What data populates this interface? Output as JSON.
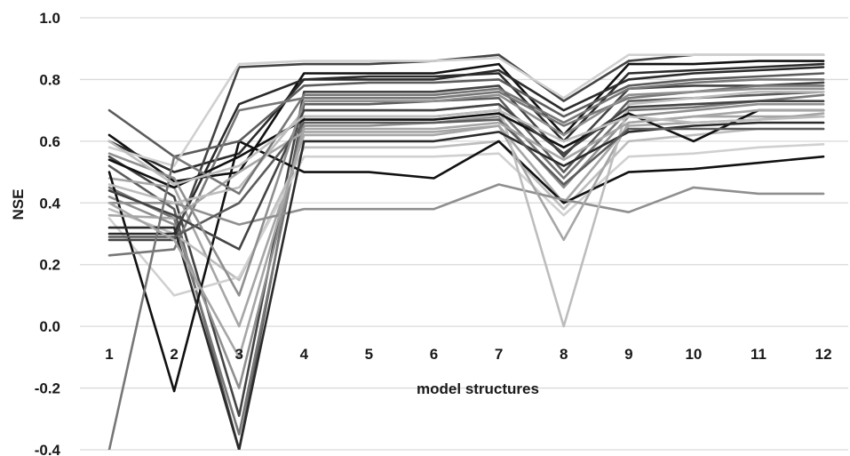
{
  "chart_data": {
    "type": "line",
    "title": "",
    "xlabel": "model structures",
    "ylabel": "NSE",
    "x": [
      "1",
      "2",
      "3",
      "4",
      "5",
      "6",
      "7",
      "8",
      "9",
      "10",
      "11",
      "12"
    ],
    "ylim": [
      -0.4,
      1.0
    ],
    "yticks": [
      "-0.4",
      "-0.2",
      "0.0",
      "0.2",
      "0.4",
      "0.6",
      "0.8",
      "1.0"
    ],
    "grid": true,
    "legend": "none",
    "colors": [
      "#111111",
      "#2b2b2b",
      "#444444",
      "#5c5c5c",
      "#777777",
      "#8f8f8f",
      "#a6a6a6",
      "#bdbdbd",
      "#d0d0d0"
    ],
    "series": [
      {
        "values": [
          0.62,
          0.47,
          0.5,
          0.82,
          0.82,
          0.82,
          0.85,
          0.62,
          0.85,
          0.85,
          0.86,
          0.86
        ]
      },
      {
        "values": [
          0.6,
          0.5,
          0.56,
          0.8,
          0.81,
          0.81,
          0.82,
          0.6,
          0.82,
          0.83,
          0.84,
          0.85
        ]
      },
      {
        "values": [
          0.55,
          0.42,
          -0.29,
          0.76,
          0.76,
          0.76,
          0.78,
          0.55,
          0.77,
          0.78,
          0.78,
          0.79
        ]
      },
      {
        "values": [
          0.52,
          0.38,
          -0.4,
          0.72,
          0.72,
          0.73,
          0.74,
          0.5,
          0.73,
          0.74,
          0.75,
          0.76
        ]
      },
      {
        "values": [
          0.45,
          0.35,
          -0.35,
          0.68,
          0.68,
          0.68,
          0.7,
          0.48,
          0.7,
          0.71,
          0.73,
          0.75
        ]
      },
      {
        "values": [
          0.42,
          0.33,
          -0.2,
          0.65,
          0.65,
          0.66,
          0.68,
          0.45,
          0.68,
          0.7,
          0.72,
          0.72
        ]
      },
      {
        "values": [
          0.48,
          0.45,
          0.0,
          0.62,
          0.62,
          0.62,
          0.65,
          0.4,
          0.65,
          0.66,
          0.67,
          0.69
        ]
      },
      {
        "values": [
          0.38,
          0.3,
          0.15,
          0.58,
          0.58,
          0.58,
          0.6,
          0.38,
          0.6,
          0.62,
          0.64,
          0.64
        ]
      },
      {
        "values": [
          0.35,
          0.1,
          0.16,
          0.55,
          0.55,
          0.55,
          0.56,
          0.36,
          0.55,
          0.56,
          0.58,
          0.59
        ]
      },
      {
        "values": [
          0.5,
          -0.21,
          0.6,
          0.5,
          0.5,
          0.48,
          0.6,
          0.4,
          0.5,
          0.51,
          0.53,
          0.55
        ]
      },
      {
        "values": [
          0.3,
          0.3,
          0.72,
          0.8,
          0.8,
          0.8,
          0.83,
          0.7,
          0.8,
          0.82,
          0.83,
          0.84
        ]
      },
      {
        "values": [
          0.28,
          0.28,
          0.84,
          0.85,
          0.85,
          0.86,
          0.88,
          0.73,
          0.86,
          0.88,
          0.88,
          0.88
        ]
      },
      {
        "values": [
          0.7,
          0.55,
          0.6,
          0.78,
          0.79,
          0.79,
          0.8,
          0.68,
          0.78,
          0.8,
          0.81,
          0.82
        ]
      },
      {
        "values": [
          0.23,
          0.25,
          0.7,
          0.74,
          0.74,
          0.74,
          0.76,
          0.65,
          0.74,
          0.76,
          0.78,
          0.78
        ]
      },
      {
        "values": [
          0.4,
          0.4,
          0.33,
          0.38,
          0.38,
          0.38,
          0.46,
          0.41,
          0.37,
          0.45,
          0.43,
          0.43
        ]
      },
      {
        "values": [
          0.36,
          0.35,
          0.5,
          0.63,
          0.63,
          0.63,
          0.65,
          0.28,
          0.66,
          0.68,
          0.68,
          0.68
        ]
      },
      {
        "values": [
          0.46,
          0.4,
          0.45,
          0.7,
          0.7,
          0.7,
          0.72,
          0.0,
          0.72,
          0.74,
          0.76,
          0.76
        ]
      },
      {
        "values": [
          0.58,
          0.52,
          0.85,
          0.86,
          0.86,
          0.86,
          0.87,
          0.74,
          0.88,
          0.88,
          0.88,
          0.88
        ]
      },
      {
        "values": [
          0.54,
          0.45,
          0.55,
          0.67,
          0.67,
          0.67,
          0.69,
          0.58,
          0.69,
          0.6,
          0.7,
          0.7
        ]
      },
      {
        "values": [
          0.32,
          0.32,
          -0.4,
          0.6,
          0.6,
          0.6,
          0.63,
          0.52,
          0.63,
          0.65,
          0.66,
          0.66
        ]
      },
      {
        "values": [
          0.44,
          0.36,
          0.25,
          0.7,
          0.7,
          0.7,
          0.72,
          0.56,
          0.71,
          0.72,
          0.73,
          0.73
        ]
      },
      {
        "values": [
          0.29,
          0.29,
          0.4,
          0.66,
          0.66,
          0.66,
          0.67,
          0.46,
          0.64,
          0.64,
          0.64,
          0.64
        ]
      },
      {
        "values": [
          -0.4,
          0.55,
          0.43,
          0.75,
          0.75,
          0.75,
          0.77,
          0.66,
          0.77,
          0.79,
          0.8,
          0.8
        ]
      },
      {
        "values": [
          0.56,
          0.48,
          0.1,
          0.73,
          0.73,
          0.73,
          0.75,
          0.62,
          0.75,
          0.76,
          0.77,
          0.77
        ]
      },
      {
        "values": [
          0.4,
          0.28,
          -0.1,
          0.64,
          0.64,
          0.64,
          0.66,
          0.54,
          0.66,
          0.68,
          0.7,
          0.7
        ]
      },
      {
        "values": [
          0.6,
          0.46,
          0.52,
          0.68,
          0.68,
          0.68,
          0.7,
          0.6,
          0.68,
          0.66,
          0.67,
          0.68
        ]
      }
    ]
  }
}
